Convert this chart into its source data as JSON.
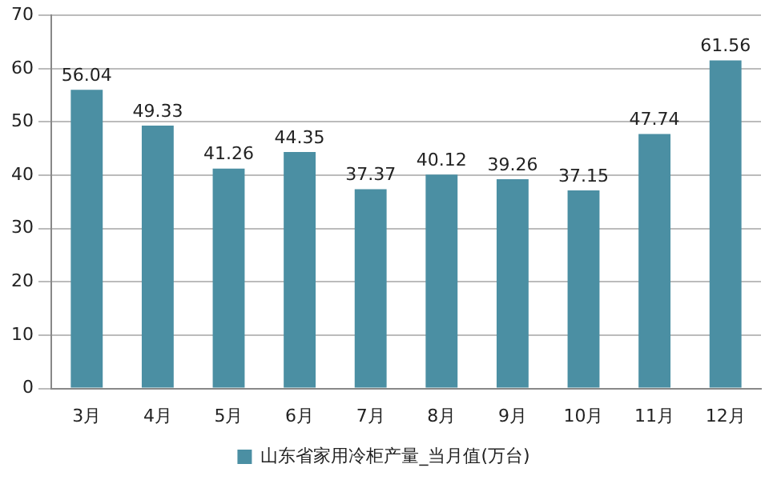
{
  "chart_data": {
    "type": "bar",
    "categories": [
      "3月",
      "4月",
      "5月",
      "6月",
      "7月",
      "8月",
      "9月",
      "10月",
      "11月",
      "12月"
    ],
    "series": [
      {
        "name": "山东省家用冷柜产量_当月值(万台)",
        "color": "#4b8fa3",
        "values": [
          56.04,
          49.33,
          41.26,
          44.35,
          37.37,
          40.12,
          39.26,
          37.15,
          47.74,
          61.56
        ]
      }
    ],
    "ylim": [
      0,
      70
    ],
    "yticks": [
      0,
      10,
      20,
      30,
      40,
      50,
      60,
      70
    ],
    "grid": "y",
    "legend": "bottom",
    "data_labels": true
  }
}
